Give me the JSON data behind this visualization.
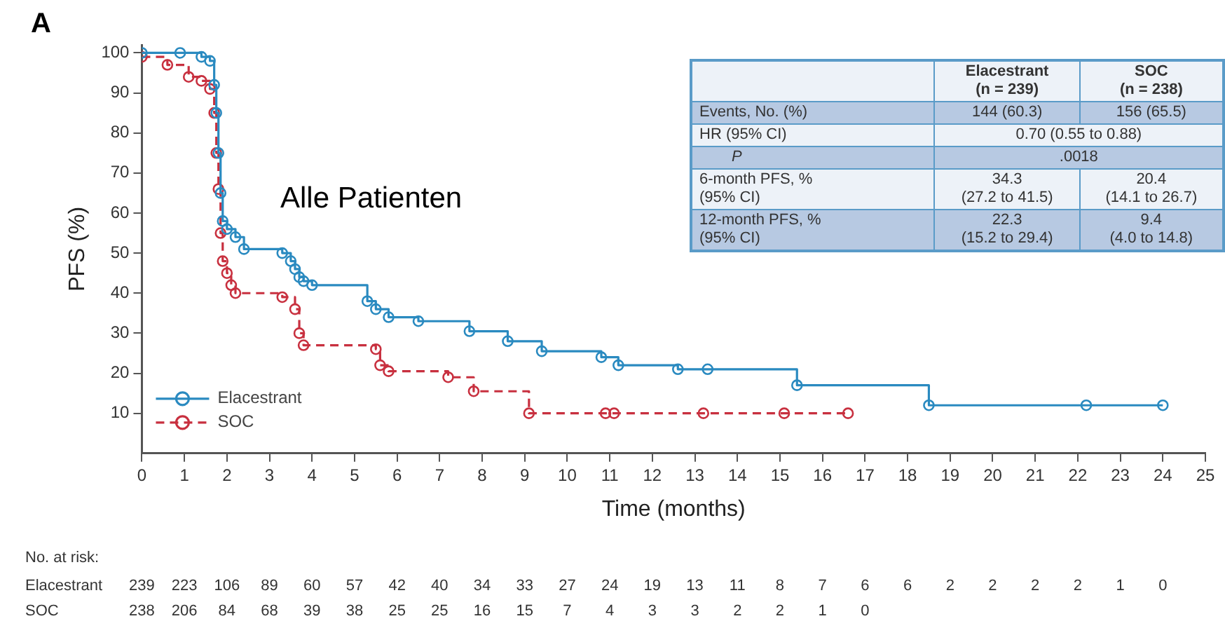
{
  "chart_data": {
    "type": "step",
    "xlabel": "Time (months)",
    "ylabel": "PFS (%)",
    "xlim": [
      0,
      25
    ],
    "ylim": [
      0,
      102
    ],
    "xticks": [
      0,
      1,
      2,
      3,
      4,
      5,
      6,
      7,
      8,
      9,
      10,
      11,
      12,
      13,
      14,
      15,
      16,
      17,
      18,
      19,
      20,
      21,
      22,
      23,
      24,
      25
    ],
    "yticks": [
      10,
      20,
      30,
      40,
      50,
      60,
      70,
      80,
      90,
      100
    ],
    "grid": false,
    "legend": "bottom left",
    "marker": "circle",
    "series": [
      {
        "name": "Elacestrant",
        "color": "#2a8ac0",
        "line_style": "solid",
        "x": [
          0,
          0.9,
          1.4,
          1.6,
          1.7,
          1.75,
          1.8,
          1.85,
          1.9,
          2.0,
          2.2,
          2.4,
          3.3,
          3.5,
          3.6,
          3.7,
          3.8,
          4.0,
          5.3,
          5.5,
          5.8,
          6.5,
          7.7,
          8.6,
          9.4,
          10.8,
          11.2,
          12.6,
          13.3,
          15.4,
          18.5,
          22.2,
          24.0
        ],
        "values": [
          100,
          100,
          99,
          98,
          92,
          85,
          75,
          65,
          58,
          56,
          54,
          51,
          50,
          48,
          46,
          44,
          43,
          42,
          38,
          36,
          34,
          33,
          30.5,
          28,
          25.5,
          24,
          22,
          21,
          21,
          17,
          12,
          12,
          12
        ]
      },
      {
        "name": "SOC",
        "color": "#c8303f",
        "line_style": "dashed",
        "x": [
          0,
          0.6,
          1.1,
          1.4,
          1.6,
          1.7,
          1.75,
          1.8,
          1.85,
          1.9,
          2.0,
          2.1,
          2.2,
          3.3,
          3.6,
          3.7,
          3.8,
          5.5,
          5.6,
          5.8,
          7.2,
          7.8,
          9.1,
          10.9,
          11.1,
          13.2,
          15.1,
          16.6
        ],
        "values": [
          99,
          97,
          94,
          93,
          91,
          85,
          75,
          66,
          55,
          48,
          45,
          42,
          40,
          39,
          36,
          30,
          27,
          26,
          22,
          20.5,
          19,
          15.5,
          10,
          10,
          10,
          10,
          10,
          10
        ]
      }
    ],
    "annotations": [
      "A",
      "Alle Patienten",
      "Elacestrant (n = 239)",
      "SOC (n = 238)",
      "Events, No. (%)",
      "144 (60.3)",
      "156 (65.5)",
      "HR (95% CI)",
      "0.70 (0.55 to 0.88)",
      "P",
      ".0018",
      "6-month PFS, % (95% CI)",
      "34.3 (27.2 to 41.5)",
      "20.4 (14.1 to 26.7)",
      "12-month PFS, % (95% CI)",
      "22.3 (15.2 to 29.4)",
      "9.4 (4.0 to 14.8)",
      "No. at risk:",
      "Elacestrant 239 223 106 89 60 57 42 40 34 33 27 24 19 13 11 8 7 6 6 2 2 2 2 1 0",
      "SOC 238 206 84 68 39 38 25 25 16 15 7 4 3 3 2 2 1 0"
    ]
  }
}
